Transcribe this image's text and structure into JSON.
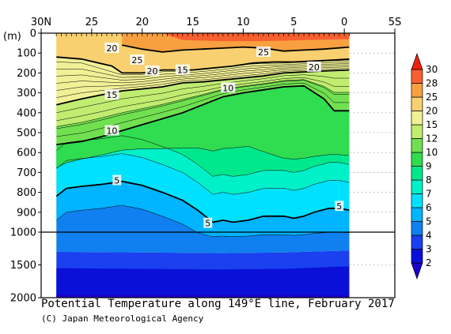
{
  "chart_data": {
    "type": "contour",
    "title": "Potential Temperature along 149°E line, February 2017",
    "credit": "(C) Japan Meteorological Agency",
    "ylabel": "(m)",
    "xaxis": {
      "direction": "north-to-south",
      "ticks": [
        "30N",
        "25",
        "20",
        "15",
        "10",
        "5",
        "0",
        "5S"
      ],
      "data_range_lat": [
        28.5,
        -0.5
      ],
      "range": [
        "30N",
        "5S"
      ]
    },
    "yaxis": {
      "ticks": [
        0,
        100,
        200,
        300,
        400,
        500,
        600,
        700,
        800,
        900,
        1000,
        1500,
        2000
      ],
      "range": [
        0,
        2000
      ],
      "scale_change_at": 1000
    },
    "levels": [
      2,
      3,
      4,
      5,
      6,
      7,
      8,
      9,
      10,
      12,
      15,
      20,
      25,
      28,
      30
    ],
    "colorbar": [
      {
        "range": "<2",
        "color": "#1a00c8"
      },
      {
        "range": "2-3",
        "color": "#0a10d8"
      },
      {
        "range": "3-4",
        "color": "#1a40f0"
      },
      {
        "range": "4-5",
        "color": "#1080f0"
      },
      {
        "range": "5-6",
        "color": "#00b4ff"
      },
      {
        "range": "6-7",
        "color": "#00e0ff"
      },
      {
        "range": "7-8",
        "color": "#00f0c8"
      },
      {
        "range": "8-9",
        "color": "#00e88c"
      },
      {
        "range": "9-10",
        "color": "#30dc50"
      },
      {
        "range": "10-12",
        "color": "#70e050"
      },
      {
        "range": "12-15",
        "color": "#c0ec70"
      },
      {
        "range": "15-20",
        "color": "#f0f096"
      },
      {
        "range": "20-25",
        "color": "#f8d070"
      },
      {
        "range": "25-28",
        "color": "#f8a040"
      },
      {
        "range": "28-30",
        "color": "#f86030"
      },
      {
        "range": ">30",
        "color": "#f02010"
      }
    ],
    "isotherms_labeled": [
      {
        "temp": 20,
        "points": [
          [
            28.5,
            120
          ],
          [
            26,
            130
          ],
          [
            23,
            165
          ],
          [
            22,
            200
          ],
          [
            20,
            200
          ],
          [
            18,
            185
          ],
          [
            15,
            185
          ],
          [
            13,
            175
          ],
          [
            11,
            165
          ],
          [
            9,
            150
          ],
          [
            7,
            145
          ],
          [
            5,
            145
          ],
          [
            3,
            140
          ],
          [
            1,
            135
          ],
          [
            -0.5,
            130
          ]
        ]
      },
      {
        "temp": 15,
        "points": [
          [
            28.5,
            360
          ],
          [
            26,
            330
          ],
          [
            24,
            310
          ],
          [
            22,
            290
          ],
          [
            20,
            280
          ],
          [
            18,
            270
          ],
          [
            16,
            250
          ],
          [
            14,
            245
          ],
          [
            12,
            235
          ],
          [
            10,
            225
          ],
          [
            8,
            215
          ],
          [
            6,
            200
          ],
          [
            4,
            195
          ],
          [
            2,
            190
          ],
          [
            -0.5,
            185
          ]
        ]
      },
      {
        "temp": 10,
        "points": [
          [
            28.5,
            560
          ],
          [
            26,
            545
          ],
          [
            24,
            520
          ],
          [
            22,
            490
          ],
          [
            20,
            460
          ],
          [
            18,
            430
          ],
          [
            16,
            400
          ],
          [
            14,
            360
          ],
          [
            12,
            320
          ],
          [
            10,
            300
          ],
          [
            8,
            285
          ],
          [
            6,
            270
          ],
          [
            4,
            265
          ],
          [
            2,
            330
          ],
          [
            1,
            390
          ],
          [
            -0.5,
            390
          ]
        ]
      },
      {
        "temp": 5,
        "points": [
          [
            28.5,
            820
          ],
          [
            27.5,
            780
          ],
          [
            26,
            770
          ],
          [
            24,
            760
          ],
          [
            22,
            745
          ],
          [
            20,
            765
          ],
          [
            18,
            800
          ],
          [
            16,
            840
          ],
          [
            14.5,
            890
          ],
          [
            13,
            950
          ],
          [
            12,
            940
          ],
          [
            11,
            950
          ],
          [
            9.5,
            940
          ],
          [
            8,
            920
          ],
          [
            6,
            920
          ],
          [
            5,
            930
          ],
          [
            4,
            920
          ],
          [
            3,
            900
          ],
          [
            1.5,
            880
          ],
          [
            0.5,
            880
          ],
          [
            -0.5,
            890
          ]
        ]
      },
      {
        "temp": 25,
        "points": [
          [
            22,
            60
          ],
          [
            20,
            80
          ],
          [
            18,
            95
          ],
          [
            16,
            85
          ],
          [
            14,
            80
          ],
          [
            12,
            75
          ],
          [
            10,
            70
          ],
          [
            8,
            75
          ],
          [
            6,
            90
          ],
          [
            4,
            85
          ],
          [
            2,
            80
          ],
          [
            -0.5,
            70
          ]
        ]
      }
    ],
    "isotherm_labels": [
      {
        "text": "20",
        "lat": 23,
        "depth": 75
      },
      {
        "text": "25",
        "lat": 20.5,
        "depth": 135
      },
      {
        "text": "20",
        "lat": 19,
        "depth": 190
      },
      {
        "text": "15",
        "lat": 16,
        "depth": 185
      },
      {
        "text": "25",
        "lat": 8,
        "depth": 95
      },
      {
        "text": "20",
        "lat": 3,
        "depth": 170
      },
      {
        "text": "15",
        "lat": 23,
        "depth": 310
      },
      {
        "text": "10",
        "lat": 11.5,
        "depth": 275
      },
      {
        "text": "10",
        "lat": 23,
        "depth": 490
      },
      {
        "text": "5",
        "lat": 22.5,
        "depth": 740
      },
      {
        "text": "5",
        "lat": 13.5,
        "depth": 955
      },
      {
        "text": "5",
        "lat": 0.5,
        "depth": 870
      }
    ]
  }
}
